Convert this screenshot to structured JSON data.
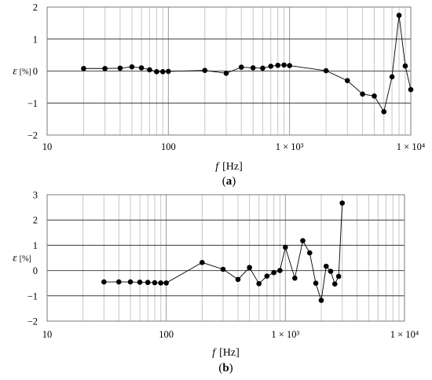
{
  "chart_data": [
    {
      "type": "line",
      "panel_label": "a",
      "xlabel": "f",
      "xunit": "[Hz]",
      "ylabel": "ε",
      "yunit": "[%]",
      "xscale": "log",
      "xlim": [
        10,
        10000
      ],
      "ylim": [
        -2,
        2
      ],
      "grid": true,
      "x_tick_labels": [
        "10",
        "100",
        "1 × 10³",
        "1 × 10⁴"
      ],
      "y_tick_labels": [
        "2",
        "1",
        "0",
        "−1",
        "−2"
      ],
      "x_tick_values": [
        10,
        100,
        1000,
        10000
      ],
      "y_tick_values": [
        2,
        1,
        0,
        -1,
        -2
      ],
      "series": [
        {
          "x": [
            20,
            30,
            40,
            50,
            60,
            70,
            80,
            90,
            100,
            200,
            300,
            400,
            500,
            600,
            700,
            800,
            900,
            1000,
            2000,
            3000,
            4000,
            5000,
            6000,
            7000,
            8000,
            9000,
            10000
          ],
          "y": [
            0.08,
            0.08,
            0.09,
            0.13,
            0.1,
            0.04,
            -0.02,
            -0.02,
            -0.01,
            0.02,
            -0.07,
            0.12,
            0.1,
            0.09,
            0.15,
            0.18,
            0.19,
            0.17,
            0.01,
            -0.3,
            -0.72,
            -0.78,
            -1.27,
            -0.18,
            1.74,
            0.16,
            -0.58
          ]
        }
      ]
    },
    {
      "type": "line",
      "panel_label": "b",
      "xlabel": "f",
      "xunit": "[Hz]",
      "ylabel": "ε",
      "yunit": "[%]",
      "xscale": "log",
      "xlim": [
        10,
        10000
      ],
      "ylim": [
        -2,
        3
      ],
      "grid": true,
      "x_tick_labels": [
        "10",
        "100",
        "1 × 10³",
        "1 × 10⁴"
      ],
      "y_tick_labels": [
        "3",
        "2",
        "1",
        "0",
        "−1",
        "−2"
      ],
      "x_tick_values": [
        10,
        100,
        1000,
        10000
      ],
      "y_tick_values": [
        3,
        2,
        1,
        0,
        -1,
        -2
      ],
      "series": [
        {
          "x": [
            30,
            40,
            50,
            60,
            70,
            80,
            90,
            100,
            200,
            300,
            400,
            500,
            600,
            700,
            800,
            900,
            1000,
            1200,
            1400,
            1600,
            1800,
            2000,
            2200,
            2400,
            2600,
            2800,
            3000
          ],
          "y": [
            -0.45,
            -0.45,
            -0.45,
            -0.46,
            -0.47,
            -0.48,
            -0.49,
            -0.49,
            0.32,
            0.05,
            -0.35,
            0.12,
            -0.52,
            -0.22,
            -0.08,
            0.0,
            0.92,
            -0.3,
            1.18,
            0.7,
            -0.5,
            -1.18,
            0.17,
            -0.03,
            -0.53,
            -0.23,
            2.67
          ]
        }
      ]
    }
  ]
}
